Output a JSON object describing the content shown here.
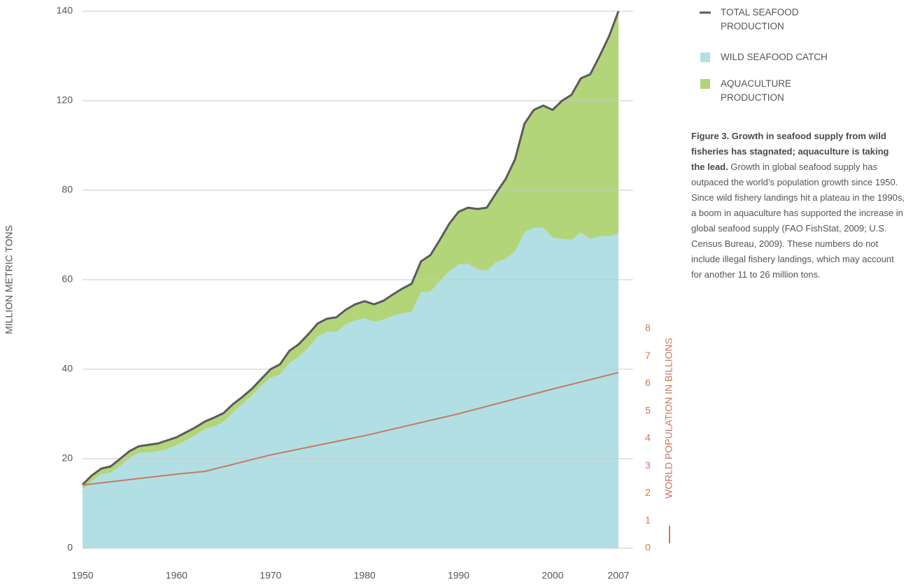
{
  "chart_data": {
    "type": "stacked_area_line",
    "ylabel": "MILLION METRIC TONS",
    "x": [
      1950,
      1951,
      1952,
      1953,
      1954,
      1955,
      1956,
      1957,
      1958,
      1959,
      1960,
      1961,
      1962,
      1963,
      1964,
      1965,
      1966,
      1967,
      1968,
      1969,
      1970,
      1971,
      1972,
      1973,
      1974,
      1975,
      1976,
      1977,
      1978,
      1979,
      1980,
      1981,
      1982,
      1983,
      1984,
      1985,
      1986,
      1987,
      1988,
      1989,
      1990,
      1991,
      1992,
      1993,
      1994,
      1995,
      1996,
      1997,
      1998,
      1999,
      2000,
      2001,
      2002,
      2003,
      2004,
      2005,
      2006,
      2007
    ],
    "xlim": [
      1950,
      2007
    ],
    "xticks": [
      1950,
      1960,
      1970,
      1980,
      1990,
      2000,
      2007
    ],
    "ylim": [
      0,
      140
    ],
    "yticks": [
      0,
      20,
      40,
      60,
      80,
      120,
      140
    ],
    "y2lim": [
      0,
      8
    ],
    "y2ticks": [
      0,
      1,
      2,
      3,
      4,
      5,
      6,
      7,
      8
    ],
    "grid": true,
    "series": [
      {
        "name": "TOTAL SEAFOOD PRODUCTION",
        "kind": "line",
        "color": "#5b5b5b",
        "values": [
          14.2,
          16.3,
          17.8,
          18.3,
          20,
          21.7,
          22.8,
          23.1,
          23.4,
          24.1,
          24.8,
          25.9,
          27,
          28.3,
          29.2,
          30.2,
          32.2,
          33.8,
          35.6,
          37.8,
          40,
          41.1,
          44.1,
          45.6,
          47.8,
          50.2,
          51.3,
          51.6,
          53.3,
          54.5,
          55.2,
          54.5,
          55.3,
          56.7,
          58,
          59.1,
          64.1,
          65.5,
          68.9,
          72.5,
          75.2,
          76.1,
          75.8,
          76.1,
          79.4,
          85,
          93.8,
          109.7,
          115.9,
          117.8,
          115.9,
          120,
          121.3,
          125,
          125.9,
          130,
          134.4,
          140
        ]
      },
      {
        "name": "WILD SEAFOOD CATCH",
        "kind": "area",
        "color": "#b1dfe3",
        "values": [
          13.1,
          15,
          16.6,
          16.9,
          18.4,
          20.2,
          21.3,
          21.4,
          21.6,
          22.2,
          23,
          24.1,
          25.3,
          26.6,
          27.2,
          28.3,
          30.3,
          32.2,
          34.1,
          36.3,
          38.1,
          38.8,
          41.4,
          42.8,
          44.8,
          47.3,
          48.4,
          48.3,
          50,
          50.9,
          51.4,
          50.6,
          51.1,
          51.9,
          52.5,
          52.8,
          57.2,
          57.3,
          59.7,
          61.9,
          63.4,
          63.6,
          62.3,
          62,
          63.9,
          64.7,
          66.3,
          70.6,
          71.6,
          71.6,
          69.4,
          69.1,
          68.9,
          70.5,
          69.1,
          69.7,
          69.7,
          70.3
        ]
      },
      {
        "name": "AQUACULTURE PRODUCTION",
        "kind": "stacked_area",
        "color": "#b2d57a",
        "values": [
          1.1,
          1.3,
          1.2,
          1.4,
          1.6,
          1.5,
          1.5,
          1.7,
          1.8,
          1.9,
          1.8,
          1.8,
          1.7,
          1.7,
          2,
          1.9,
          1.9,
          1.6,
          1.5,
          1.5,
          1.9,
          2.3,
          2.7,
          2.8,
          3,
          2.9,
          2.9,
          3.3,
          3.3,
          3.6,
          3.8,
          3.9,
          4.2,
          4.8,
          5.5,
          6.3,
          6.9,
          8.2,
          9.2,
          10.6,
          11.8,
          12.5,
          13.5,
          14.1,
          15.5,
          20.3,
          27.5,
          39.1,
          44.3,
          46.2,
          46.5,
          50.9,
          52.4,
          54.5,
          56.8,
          60.3,
          64.7,
          69.7
        ]
      },
      {
        "name": "WORLD POPULATION IN BILLIONS",
        "kind": "line",
        "axis": "y2",
        "color": "#c8795f",
        "x": [
          1950,
          1960,
          1963,
          1970,
          1980,
          1990,
          2000,
          2007
        ],
        "values": [
          2.3,
          2.7,
          2.8,
          3.4,
          4.1,
          4.9,
          5.8,
          6.4
        ]
      }
    ],
    "caption": {
      "bold": "Figure 3. Growth in seafood supply from wild fisheries has stagnated; aquaculture is taking the lead.",
      "text": "Growth in global seafood supply has outpaced the world’s population growth since 1950. Since wild fishery landings hit a plateau in the 1990s, a boom in aquaculture has supported the increase in global seafood supply (FAO FishStat, 2009; U.S. Census Bureau, 2009). These numbers do not include illegal fishery landings, which may account for another 11 to 26 million tons."
    }
  }
}
